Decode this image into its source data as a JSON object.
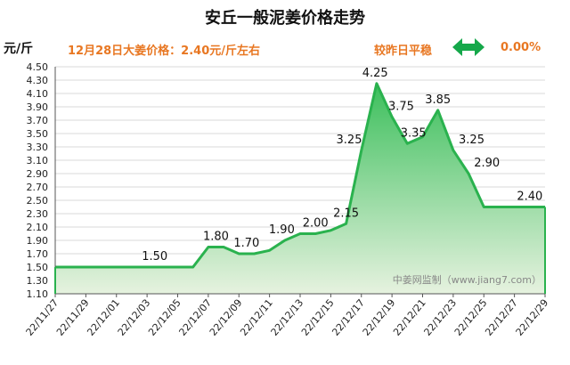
{
  "chart_data": {
    "type": "area",
    "title": "安丘一般泥姜价格走势",
    "ylabel": "元/斤",
    "ylim": [
      1.1,
      4.5
    ],
    "yticks": [
      "1.10",
      "1.30",
      "1.50",
      "1.70",
      "1.90",
      "2.10",
      "2.30",
      "2.50",
      "2.70",
      "2.90",
      "3.10",
      "3.30",
      "3.50",
      "3.70",
      "3.90",
      "4.10",
      "4.30",
      "4.50"
    ],
    "x_labels": [
      "22/11/27",
      "22/11/29",
      "22/12/01",
      "22/12/03",
      "22/12/05",
      "22/12/07",
      "22/12/09",
      "22/12/11",
      "22/12/13",
      "22/12/15",
      "22/12/17",
      "22/12/19",
      "22/12/21",
      "22/12/23",
      "22/12/25",
      "22/12/27",
      "22/12/29"
    ],
    "points": [
      {
        "x": 0,
        "y": 1.5
      },
      {
        "x": 9,
        "y": 1.5
      },
      {
        "x": 10,
        "y": 1.8
      },
      {
        "x": 11,
        "y": 1.8
      },
      {
        "x": 12,
        "y": 1.7
      },
      {
        "x": 13,
        "y": 1.7
      },
      {
        "x": 14,
        "y": 1.75
      },
      {
        "x": 15,
        "y": 1.9
      },
      {
        "x": 16,
        "y": 2.0
      },
      {
        "x": 17,
        "y": 2.0
      },
      {
        "x": 18,
        "y": 2.05
      },
      {
        "x": 19,
        "y": 2.15
      },
      {
        "x": 20,
        "y": 3.25
      },
      {
        "x": 21,
        "y": 4.25
      },
      {
        "x": 22,
        "y": 3.75
      },
      {
        "x": 23,
        "y": 3.35
      },
      {
        "x": 24,
        "y": 3.45
      },
      {
        "x": 25,
        "y": 3.85
      },
      {
        "x": 26,
        "y": 3.25
      },
      {
        "x": 27,
        "y": 2.9
      },
      {
        "x": 28,
        "y": 2.4
      },
      {
        "x": 32,
        "y": 2.4
      }
    ],
    "data_labels": [
      {
        "text": "1.50",
        "x": 6.5,
        "y": 1.5
      },
      {
        "text": "1.80",
        "x": 10.5,
        "y": 1.8
      },
      {
        "text": "1.70",
        "x": 12.5,
        "y": 1.7
      },
      {
        "text": "1.90",
        "x": 14.8,
        "y": 1.9
      },
      {
        "text": "2.00",
        "x": 17.0,
        "y": 2.0
      },
      {
        "text": "2.15",
        "x": 19.0,
        "y": 2.15
      },
      {
        "text": "3.25",
        "x": 19.2,
        "y": 3.25
      },
      {
        "text": "4.25",
        "x": 20.9,
        "y": 4.25
      },
      {
        "text": "3.75",
        "x": 22.6,
        "y": 3.75
      },
      {
        "text": "3.35",
        "x": 23.4,
        "y": 3.35
      },
      {
        "text": "3.85",
        "x": 25.0,
        "y": 3.85
      },
      {
        "text": "3.25",
        "x": 27.2,
        "y": 3.25
      },
      {
        "text": "2.90",
        "x": 28.2,
        "y": 2.9
      },
      {
        "text": "2.40",
        "x": 31.0,
        "y": 2.4
      }
    ],
    "colors": {
      "line": "#2ab24e",
      "fill_top": "#3cbf5c",
      "fill_bottom": "#e6f2df",
      "grid": "#d9d9d9",
      "axis": "#555555"
    }
  },
  "header": {
    "unit": "元/斤",
    "price_text": "12月28日大姜价格：2.40元/斤左右",
    "trend_text": "较昨日平稳",
    "trend_icon": "double-arrow-icon",
    "trend_icon_color": "#15a84a",
    "change_text": "0.00%"
  },
  "watermark": "中姜网监制（www.jiang7.com）"
}
